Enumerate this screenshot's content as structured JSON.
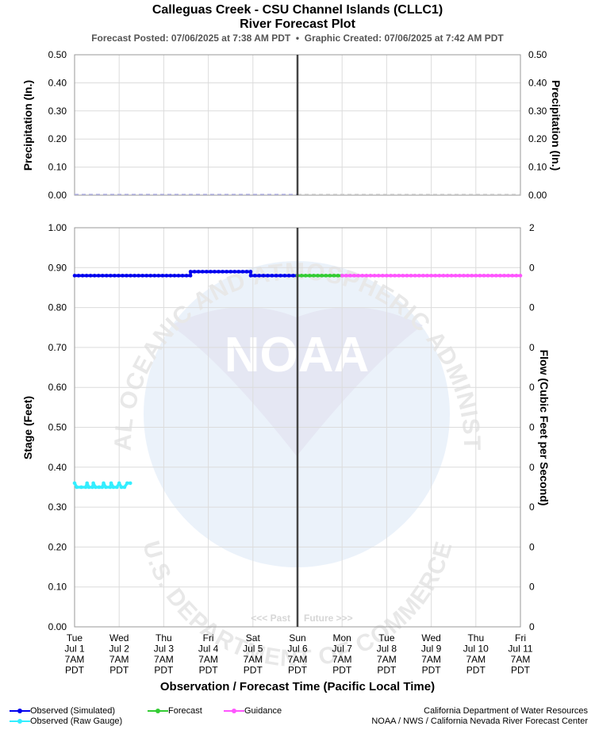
{
  "header": {
    "title": "Calleguas Creek - CSU Channel Islands (CLLC1)",
    "subtitle": "River Forecast Plot",
    "posted": "Forecast Posted: 07/06/2025 at 7:38 AM PDT",
    "separator": "•",
    "created": "Graphic Created: 07/06/2025 at 7:42 AM PDT"
  },
  "chart_data": [
    {
      "type": "line",
      "ylabel": "Precipitation (In.)",
      "ylabel_right": "Precipitation (In.)",
      "ylim": [
        0,
        0.5
      ],
      "yticks": [
        "0.00",
        "0.10",
        "0.20",
        "0.30",
        "0.40",
        "0.50"
      ],
      "yticks_right": [
        "0.00",
        "0.10",
        "0.20",
        "0.30",
        "0.40",
        "0.50"
      ],
      "grid": true,
      "series": [
        {
          "kind": "dashed",
          "color": "#b3b3e6",
          "x_range": [
            "Tue Jul 1 7AM",
            "Sun Jul 6 7AM"
          ],
          "y": 0.0
        },
        {
          "kind": "dashed",
          "color": "#d0d0d0",
          "x_range": [
            "Sun Jul 6 7AM",
            "Fri Jul 11 7AM"
          ],
          "y": 0.0
        }
      ]
    },
    {
      "type": "line",
      "ylabel": "Stage (Feet)",
      "ylabel_right": "Flow (Cubic Feet per Second)",
      "xlabel": "Observation / Forecast Time (Pacific Local Time)",
      "ylim": [
        0,
        1.0
      ],
      "yticks": [
        "0.00",
        "0.10",
        "0.20",
        "0.30",
        "0.40",
        "0.50",
        "0.60",
        "0.70",
        "0.80",
        "0.90",
        "1.00"
      ],
      "yticks_right": [
        "0",
        "0",
        "0",
        "0",
        "0",
        "0",
        "0",
        "0",
        "0",
        "0",
        "2"
      ],
      "x_days": 10,
      "xticks": [
        [
          "Tue",
          "Jul 1",
          "7AM",
          "PDT"
        ],
        [
          "Wed",
          "Jul 2",
          "7AM",
          "PDT"
        ],
        [
          "Thu",
          "Jul 3",
          "7AM",
          "PDT"
        ],
        [
          "Fri",
          "Jul 4",
          "7AM",
          "PDT"
        ],
        [
          "Sat",
          "Jul 5",
          "7AM",
          "PDT"
        ],
        [
          "Sun",
          "Jul 6",
          "7AM",
          "PDT"
        ],
        [
          "Mon",
          "Jul 7",
          "7AM",
          "PDT"
        ],
        [
          "Tue",
          "Jul 8",
          "7AM",
          "PDT"
        ],
        [
          "Wed",
          "Jul 9",
          "7AM",
          "PDT"
        ],
        [
          "Thu",
          "Jul 10",
          "7AM",
          "PDT"
        ],
        [
          "Fri",
          "Jul 11",
          "7AM",
          "PDT"
        ]
      ],
      "now_x": 5,
      "past_label": "<<< Past",
      "future_label": "Future >>>",
      "grid": true,
      "series": [
        {
          "name": "Observed (Simulated)",
          "color": "#0000ee",
          "points": [
            [
              0,
              0.88
            ],
            [
              2.6,
              0.88
            ],
            [
              2.6,
              0.89
            ],
            [
              3.95,
              0.89
            ],
            [
              3.95,
              0.88
            ],
            [
              5.0,
              0.88
            ]
          ]
        },
        {
          "name": "Forecast",
          "color": "#33cc33",
          "points": [
            [
              5.0,
              0.88
            ],
            [
              6.0,
              0.88
            ]
          ]
        },
        {
          "name": "Guidance",
          "color": "#ff55ff",
          "points": [
            [
              6.0,
              0.88
            ],
            [
              10.0,
              0.88
            ]
          ]
        },
        {
          "name": "Observed (Raw Gauge)",
          "color": "#33eeff",
          "points": [
            [
              0.0,
              0.36
            ],
            [
              0.05,
              0.35
            ],
            [
              0.15,
              0.35
            ],
            [
              0.25,
              0.35
            ],
            [
              0.28,
              0.36
            ],
            [
              0.32,
              0.35
            ],
            [
              0.4,
              0.35
            ],
            [
              0.42,
              0.36
            ],
            [
              0.47,
              0.35
            ],
            [
              0.55,
              0.35
            ],
            [
              0.62,
              0.35
            ],
            [
              0.65,
              0.36
            ],
            [
              0.7,
              0.35
            ],
            [
              0.8,
              0.35
            ],
            [
              0.82,
              0.36
            ],
            [
              0.87,
              0.35
            ],
            [
              0.95,
              0.35
            ],
            [
              1.0,
              0.36
            ],
            [
              1.05,
              0.35
            ],
            [
              1.12,
              0.35
            ],
            [
              1.18,
              0.36
            ],
            [
              1.25,
              0.36
            ]
          ]
        }
      ]
    }
  ],
  "legend": [
    {
      "label": "Observed (Simulated)",
      "color": "#0000ee"
    },
    {
      "label": "Observed (Raw Gauge)",
      "color": "#33eeff"
    },
    {
      "label": "Forecast",
      "color": "#33cc33"
    },
    {
      "label": "Guidance",
      "color": "#ff55ff"
    }
  ],
  "footer": {
    "line1": "California Department of Water Resources",
    "line2": "NOAA / NWS / California Nevada River Forecast Center"
  },
  "watermark": {
    "arc_top": "NATIONAL OCEANIC AND ATMOSPHERIC ADMINISTRATION",
    "arc_bottom": "U.S. DEPARTMENT OF COMMERCE",
    "logo": "NOAA"
  }
}
